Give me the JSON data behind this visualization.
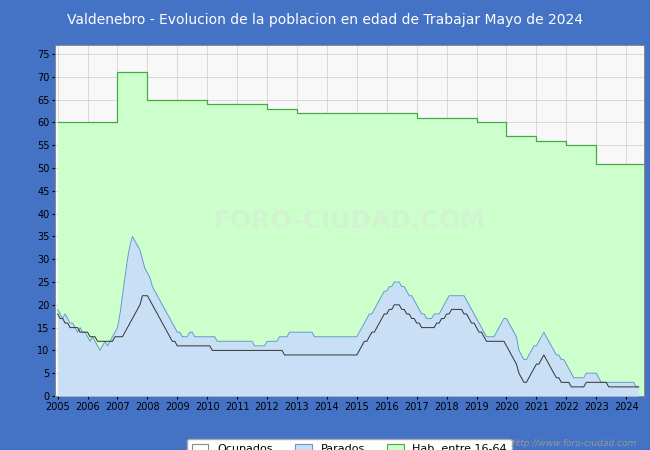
{
  "title": "Valdenebro - Evolucion de la poblacion en edad de Trabajar Mayo de 2024",
  "title_bg": "#4472c4",
  "title_color": "white",
  "plot_bg": "#f8f8f8",
  "outer_bg": "#4472c4",
  "watermark": "http://www.foro-ciudad.com",
  "legend_labels": [
    "Ocupados",
    "Parados",
    "Hab. entre 16-64"
  ],
  "hab_color_fill": "#ccffcc",
  "hab_color_line": "#44aa44",
  "par_color_fill": "#c8dff5",
  "par_color_line": "#6699cc",
  "ocu_color_line": "#333333",
  "grid_color": "#cccccc",
  "ylim": [
    0,
    77
  ],
  "yticks": [
    0,
    5,
    10,
    15,
    20,
    25,
    30,
    35,
    40,
    45,
    50,
    55,
    60,
    65,
    70,
    75
  ],
  "years_hab": [
    2005,
    2006,
    2007,
    2008,
    2009,
    2010,
    2011,
    2012,
    2013,
    2014,
    2015,
    2016,
    2017,
    2018,
    2019,
    2020,
    2021,
    2022,
    2023,
    2024
  ],
  "hab": [
    60,
    60,
    71,
    65,
    65,
    64,
    64,
    63,
    62,
    62,
    62,
    62,
    61,
    61,
    60,
    57,
    56,
    55,
    51,
    51
  ],
  "months": [
    2005.0,
    2005.083,
    2005.167,
    2005.25,
    2005.333,
    2005.417,
    2005.5,
    2005.583,
    2005.667,
    2005.75,
    2005.833,
    2005.917,
    2006.0,
    2006.083,
    2006.167,
    2006.25,
    2006.333,
    2006.417,
    2006.5,
    2006.583,
    2006.667,
    2006.75,
    2006.833,
    2006.917,
    2007.0,
    2007.083,
    2007.167,
    2007.25,
    2007.333,
    2007.417,
    2007.5,
    2007.583,
    2007.667,
    2007.75,
    2007.833,
    2007.917,
    2008.0,
    2008.083,
    2008.167,
    2008.25,
    2008.333,
    2008.417,
    2008.5,
    2008.583,
    2008.667,
    2008.75,
    2008.833,
    2008.917,
    2009.0,
    2009.083,
    2009.167,
    2009.25,
    2009.333,
    2009.417,
    2009.5,
    2009.583,
    2009.667,
    2009.75,
    2009.833,
    2009.917,
    2010.0,
    2010.083,
    2010.167,
    2010.25,
    2010.333,
    2010.417,
    2010.5,
    2010.583,
    2010.667,
    2010.75,
    2010.833,
    2010.917,
    2011.0,
    2011.083,
    2011.167,
    2011.25,
    2011.333,
    2011.417,
    2011.5,
    2011.583,
    2011.667,
    2011.75,
    2011.833,
    2011.917,
    2012.0,
    2012.083,
    2012.167,
    2012.25,
    2012.333,
    2012.417,
    2012.5,
    2012.583,
    2012.667,
    2012.75,
    2012.833,
    2012.917,
    2013.0,
    2013.083,
    2013.167,
    2013.25,
    2013.333,
    2013.417,
    2013.5,
    2013.583,
    2013.667,
    2013.75,
    2013.833,
    2013.917,
    2014.0,
    2014.083,
    2014.167,
    2014.25,
    2014.333,
    2014.417,
    2014.5,
    2014.583,
    2014.667,
    2014.75,
    2014.833,
    2014.917,
    2015.0,
    2015.083,
    2015.167,
    2015.25,
    2015.333,
    2015.417,
    2015.5,
    2015.583,
    2015.667,
    2015.75,
    2015.833,
    2015.917,
    2016.0,
    2016.083,
    2016.167,
    2016.25,
    2016.333,
    2016.417,
    2016.5,
    2016.583,
    2016.667,
    2016.75,
    2016.833,
    2016.917,
    2017.0,
    2017.083,
    2017.167,
    2017.25,
    2017.333,
    2017.417,
    2017.5,
    2017.583,
    2017.667,
    2017.75,
    2017.833,
    2017.917,
    2018.0,
    2018.083,
    2018.167,
    2018.25,
    2018.333,
    2018.417,
    2018.5,
    2018.583,
    2018.667,
    2018.75,
    2018.833,
    2018.917,
    2019.0,
    2019.083,
    2019.167,
    2019.25,
    2019.333,
    2019.417,
    2019.5,
    2019.583,
    2019.667,
    2019.75,
    2019.833,
    2019.917,
    2020.0,
    2020.083,
    2020.167,
    2020.25,
    2020.333,
    2020.417,
    2020.5,
    2020.583,
    2020.667,
    2020.75,
    2020.833,
    2020.917,
    2021.0,
    2021.083,
    2021.167,
    2021.25,
    2021.333,
    2021.417,
    2021.5,
    2021.583,
    2021.667,
    2021.75,
    2021.833,
    2021.917,
    2022.0,
    2022.083,
    2022.167,
    2022.25,
    2022.333,
    2022.417,
    2022.5,
    2022.583,
    2022.667,
    2022.75,
    2022.833,
    2022.917,
    2023.0,
    2023.083,
    2023.167,
    2023.25,
    2023.333,
    2023.417,
    2023.5,
    2023.583,
    2023.667,
    2023.75,
    2023.833,
    2023.917,
    2024.0,
    2024.083,
    2024.167,
    2024.25,
    2024.333,
    2024.417
  ],
  "parados": [
    19,
    18,
    17,
    18,
    17,
    16,
    16,
    15,
    14,
    15,
    14,
    14,
    13,
    12,
    13,
    12,
    11,
    10,
    11,
    12,
    11,
    12,
    13,
    14,
    15,
    18,
    22,
    26,
    30,
    33,
    35,
    34,
    33,
    32,
    30,
    28,
    27,
    26,
    24,
    23,
    22,
    21,
    20,
    19,
    18,
    17,
    16,
    15,
    14,
    14,
    13,
    13,
    13,
    14,
    14,
    13,
    13,
    13,
    13,
    13,
    13,
    13,
    13,
    13,
    12,
    12,
    12,
    12,
    12,
    12,
    12,
    12,
    12,
    12,
    12,
    12,
    12,
    12,
    12,
    11,
    11,
    11,
    11,
    11,
    12,
    12,
    12,
    12,
    12,
    13,
    13,
    13,
    13,
    14,
    14,
    14,
    14,
    14,
    14,
    14,
    14,
    14,
    14,
    13,
    13,
    13,
    13,
    13,
    13,
    13,
    13,
    13,
    13,
    13,
    13,
    13,
    13,
    13,
    13,
    13,
    13,
    14,
    15,
    16,
    17,
    18,
    18,
    19,
    20,
    21,
    22,
    23,
    23,
    24,
    24,
    25,
    25,
    25,
    24,
    24,
    23,
    22,
    22,
    21,
    20,
    19,
    18,
    18,
    17,
    17,
    17,
    18,
    18,
    18,
    19,
    20,
    21,
    22,
    22,
    22,
    22,
    22,
    22,
    22,
    21,
    20,
    19,
    18,
    17,
    16,
    15,
    14,
    13,
    13,
    13,
    13,
    14,
    15,
    16,
    17,
    17,
    16,
    15,
    14,
    13,
    10,
    9,
    8,
    8,
    9,
    10,
    11,
    11,
    12,
    13,
    14,
    13,
    12,
    11,
    10,
    9,
    9,
    8,
    8,
    7,
    6,
    5,
    4,
    4,
    4,
    4,
    4,
    5,
    5,
    5,
    5,
    5,
    4,
    3,
    3,
    3,
    3,
    3,
    3,
    3,
    3,
    3,
    3,
    3,
    3,
    3,
    3,
    2,
    2
  ],
  "ocupados": [
    18,
    17,
    17,
    16,
    16,
    15,
    15,
    15,
    15,
    14,
    14,
    14,
    14,
    13,
    13,
    13,
    12,
    12,
    12,
    12,
    12,
    12,
    12,
    13,
    13,
    13,
    13,
    14,
    15,
    16,
    17,
    18,
    19,
    20,
    22,
    22,
    22,
    21,
    20,
    19,
    18,
    17,
    16,
    15,
    14,
    13,
    12,
    12,
    11,
    11,
    11,
    11,
    11,
    11,
    11,
    11,
    11,
    11,
    11,
    11,
    11,
    11,
    10,
    10,
    10,
    10,
    10,
    10,
    10,
    10,
    10,
    10,
    10,
    10,
    10,
    10,
    10,
    10,
    10,
    10,
    10,
    10,
    10,
    10,
    10,
    10,
    10,
    10,
    10,
    10,
    10,
    9,
    9,
    9,
    9,
    9,
    9,
    9,
    9,
    9,
    9,
    9,
    9,
    9,
    9,
    9,
    9,
    9,
    9,
    9,
    9,
    9,
    9,
    9,
    9,
    9,
    9,
    9,
    9,
    9,
    9,
    10,
    11,
    12,
    12,
    13,
    14,
    14,
    15,
    16,
    17,
    18,
    18,
    19,
    19,
    20,
    20,
    20,
    19,
    19,
    18,
    18,
    17,
    17,
    16,
    16,
    15,
    15,
    15,
    15,
    15,
    15,
    16,
    16,
    17,
    17,
    18,
    18,
    19,
    19,
    19,
    19,
    19,
    18,
    18,
    17,
    16,
    16,
    15,
    14,
    14,
    13,
    12,
    12,
    12,
    12,
    12,
    12,
    12,
    12,
    11,
    10,
    9,
    8,
    7,
    5,
    4,
    3,
    3,
    4,
    5,
    6,
    7,
    7,
    8,
    9,
    8,
    7,
    6,
    5,
    4,
    4,
    3,
    3,
    3,
    3,
    2,
    2,
    2,
    2,
    2,
    2,
    3,
    3,
    3,
    3,
    3,
    3,
    3,
    3,
    3,
    2,
    2,
    2,
    2,
    2,
    2,
    2,
    2,
    2,
    2,
    2,
    2,
    2
  ]
}
